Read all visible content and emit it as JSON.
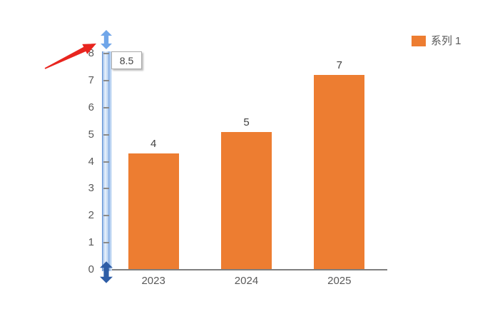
{
  "chart_data": {
    "type": "bar",
    "categories": [
      "2023",
      "2024",
      "2025"
    ],
    "values": [
      4.3,
      5.1,
      7.2
    ],
    "data_labels": [
      "4",
      "5",
      "7"
    ],
    "series": [
      {
        "name": "系列 1",
        "values": [
          4.3,
          5.1,
          7.2
        ]
      }
    ],
    "title": "",
    "xlabel": "",
    "ylabel": "",
    "ylim": [
      0,
      8
    ],
    "yticks": [
      0,
      1,
      2,
      3,
      4,
      5,
      6,
      7,
      8
    ],
    "grid": false,
    "legend_position": "top-right"
  },
  "legend": {
    "series1_label": "系列 1"
  },
  "overlay": {
    "axis_max_tooltip": "8.5",
    "drag_handle_top": "double-arrow-up-down",
    "drag_handle_bottom": "double-arrow-up-down",
    "annotation": "red-arrow-pointing-to-axis-top"
  },
  "colors": {
    "bar-color": "#ED7D31",
    "axis-text": "#595959",
    "data-label-text": "#404040",
    "axis-line": "#7F7F7F",
    "light-arrow": "#70A6E9",
    "dark-arrow": "#2E5DA6",
    "red-arrow": "#E8251F"
  }
}
